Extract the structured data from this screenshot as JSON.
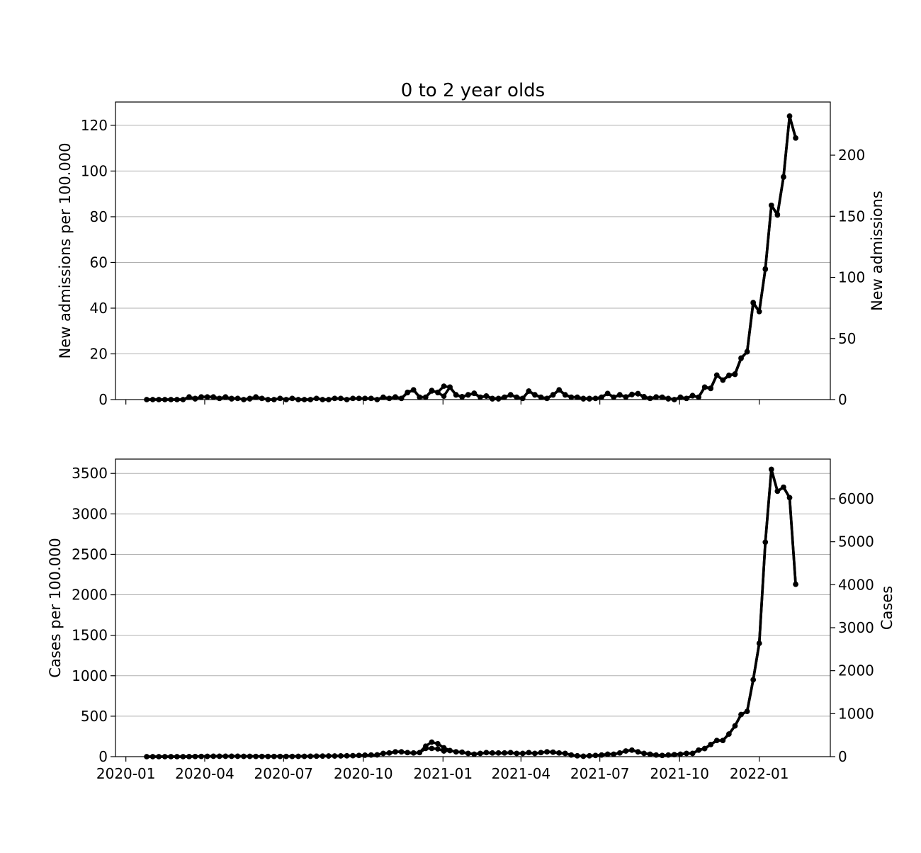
{
  "chart_data": [
    {
      "type": "line",
      "title": "0 to 2 year olds",
      "y_label": "New admissions per 100.000",
      "y2_label": "New admissions",
      "grid": true,
      "x": [
        "2020-01-25",
        "2020-02-01",
        "2020-02-08",
        "2020-02-15",
        "2020-02-22",
        "2020-02-29",
        "2020-03-07",
        "2020-03-14",
        "2020-03-21",
        "2020-03-28",
        "2020-04-04",
        "2020-04-11",
        "2020-04-18",
        "2020-04-25",
        "2020-05-02",
        "2020-05-09",
        "2020-05-16",
        "2020-05-23",
        "2020-05-30",
        "2020-06-06",
        "2020-06-13",
        "2020-06-20",
        "2020-06-27",
        "2020-07-04",
        "2020-07-11",
        "2020-07-18",
        "2020-07-25",
        "2020-08-01",
        "2020-08-08",
        "2020-08-15",
        "2020-08-22",
        "2020-08-29",
        "2020-09-05",
        "2020-09-12",
        "2020-09-19",
        "2020-09-26",
        "2020-10-03",
        "2020-10-10",
        "2020-10-17",
        "2020-10-24",
        "2020-10-31",
        "2020-11-07",
        "2020-11-14",
        "2020-11-21",
        "2020-11-28",
        "2020-12-05",
        "2020-12-12",
        "2020-12-19",
        "2020-12-26",
        "2021-01-02",
        "2021-01-09",
        "2021-01-16",
        "2021-01-23",
        "2021-01-30",
        "2021-02-06",
        "2021-02-13",
        "2021-02-20",
        "2021-02-27",
        "2021-03-06",
        "2021-03-13",
        "2021-03-20",
        "2021-03-27",
        "2021-04-03",
        "2021-04-10",
        "2021-04-17",
        "2021-04-24",
        "2021-05-01",
        "2021-05-08",
        "2021-05-15",
        "2021-05-22",
        "2021-05-29",
        "2021-06-05",
        "2021-06-12",
        "2021-06-19",
        "2021-06-26",
        "2021-07-03",
        "2021-07-10",
        "2021-07-17",
        "2021-07-24",
        "2021-07-31",
        "2021-08-07",
        "2021-08-14",
        "2021-08-21",
        "2021-08-28",
        "2021-09-04",
        "2021-09-11",
        "2021-09-18",
        "2021-09-25",
        "2021-10-02",
        "2021-10-09",
        "2021-10-16",
        "2021-10-23",
        "2021-10-30",
        "2021-11-06",
        "2021-11-13",
        "2021-11-20",
        "2021-11-27",
        "2021-12-04",
        "2021-12-11",
        "2021-12-18",
        "2021-12-25",
        "2022-01-01",
        "2022-01-08",
        "2022-01-15",
        "2022-01-22",
        "2022-01-29",
        "2022-02-05",
        "2022-02-12"
      ],
      "series": [
        {
          "color": "#000000",
          "values": [
            0,
            0,
            0,
            0,
            0,
            0,
            0,
            1.2,
            0.3,
            1.2,
            1.2,
            1.2,
            0.5,
            1.2,
            0.3,
            0.5,
            0,
            0.3,
            1.2,
            0.5,
            0,
            0,
            0.5,
            0,
            0.5,
            0,
            0,
            0,
            0.5,
            0,
            0,
            0.5,
            0.5,
            0,
            0.5,
            0.5,
            0.5,
            0.5,
            0,
            1,
            0.5,
            1.2,
            0.5,
            3,
            4.2,
            1,
            1,
            4,
            3,
            1.5,
            5.5,
            2,
            1.3,
            2,
            2.8,
            1,
            1.5,
            0.3,
            0.3,
            1,
            2,
            1,
            0.5,
            3.7,
            2,
            1,
            0.5,
            2,
            4.2,
            2,
            1,
            1,
            0.3,
            0.3,
            0.5,
            1,
            2.7,
            1,
            2,
            1.2,
            2.3,
            2.5,
            1.3,
            0.5,
            1.2,
            1,
            0.3,
            0,
            1,
            0.5,
            1.8,
            1,
            5.5,
            5,
            10.7,
            8.5,
            10.5,
            11,
            18,
            21,
            42.5,
            38.5,
            57,
            85,
            81,
            97.5,
            124,
            114.5
          ]
        },
        {
          "color": "#000000",
          "axis": "y2",
          "values": [
            0,
            0,
            0,
            0,
            0,
            0,
            0,
            2,
            1,
            2,
            2,
            2,
            1,
            2,
            1,
            1,
            0,
            1,
            2,
            1,
            0,
            0,
            1,
            0,
            1,
            0,
            0,
            0,
            1,
            0,
            0,
            1,
            1,
            0,
            1,
            1,
            1,
            1,
            0,
            2,
            1,
            2,
            1,
            6,
            8,
            2,
            2,
            7,
            6,
            11,
            10,
            4,
            2,
            4,
            5,
            2,
            3,
            1,
            1,
            2,
            4,
            2,
            1,
            7,
            4,
            2,
            1,
            4,
            8,
            4,
            2,
            2,
            1,
            1,
            1,
            2,
            5,
            2,
            4,
            2,
            4,
            5,
            2,
            1,
            2,
            2,
            1,
            0,
            2,
            1,
            3,
            2,
            10,
            9,
            20,
            16,
            20,
            21,
            34,
            39,
            79,
            72,
            107,
            159,
            151,
            182,
            232,
            214
          ]
        }
      ],
      "xlim": [
        "2019-12-20",
        "2022-03-24"
      ],
      "xticks": [
        "2020-01",
        "2020-04",
        "2020-07",
        "2020-10",
        "2021-01",
        "2021-04",
        "2021-07",
        "2021-10",
        "2022-01"
      ],
      "ylim": [
        0,
        130.2
      ],
      "yticks": [
        0,
        20,
        40,
        60,
        80,
        100,
        120
      ],
      "y2lim": [
        0,
        243.5
      ],
      "y2ticks": [
        0,
        50,
        100,
        150,
        200
      ]
    },
    {
      "type": "line",
      "y_label": "Cases per 100.000",
      "y2_label": "Cases",
      "grid": true,
      "x": [
        "2020-01-25",
        "2020-02-01",
        "2020-02-08",
        "2020-02-15",
        "2020-02-22",
        "2020-02-29",
        "2020-03-07",
        "2020-03-14",
        "2020-03-21",
        "2020-03-28",
        "2020-04-04",
        "2020-04-11",
        "2020-04-18",
        "2020-04-25",
        "2020-05-02",
        "2020-05-09",
        "2020-05-16",
        "2020-05-23",
        "2020-05-30",
        "2020-06-06",
        "2020-06-13",
        "2020-06-20",
        "2020-06-27",
        "2020-07-04",
        "2020-07-11",
        "2020-07-18",
        "2020-07-25",
        "2020-08-01",
        "2020-08-08",
        "2020-08-15",
        "2020-08-22",
        "2020-08-29",
        "2020-09-05",
        "2020-09-12",
        "2020-09-19",
        "2020-09-26",
        "2020-10-03",
        "2020-10-10",
        "2020-10-17",
        "2020-10-24",
        "2020-10-31",
        "2020-11-07",
        "2020-11-14",
        "2020-11-21",
        "2020-11-28",
        "2020-12-05",
        "2020-12-12",
        "2020-12-19",
        "2020-12-26",
        "2021-01-02",
        "2021-01-09",
        "2021-01-16",
        "2021-01-23",
        "2021-01-30",
        "2021-02-06",
        "2021-02-13",
        "2021-02-20",
        "2021-02-27",
        "2021-03-06",
        "2021-03-13",
        "2021-03-20",
        "2021-03-27",
        "2021-04-03",
        "2021-04-10",
        "2021-04-17",
        "2021-04-24",
        "2021-05-01",
        "2021-05-08",
        "2021-05-15",
        "2021-05-22",
        "2021-05-29",
        "2021-06-05",
        "2021-06-12",
        "2021-06-19",
        "2021-06-26",
        "2021-07-03",
        "2021-07-10",
        "2021-07-17",
        "2021-07-24",
        "2021-07-31",
        "2021-08-07",
        "2021-08-14",
        "2021-08-21",
        "2021-08-28",
        "2021-09-04",
        "2021-09-11",
        "2021-09-18",
        "2021-09-25",
        "2021-10-02",
        "2021-10-09",
        "2021-10-16",
        "2021-10-23",
        "2021-10-30",
        "2021-11-06",
        "2021-11-13",
        "2021-11-20",
        "2021-11-27",
        "2021-12-04",
        "2021-12-11",
        "2021-12-18",
        "2021-12-25",
        "2022-01-01",
        "2022-01-08",
        "2022-01-15",
        "2022-01-22",
        "2022-01-29",
        "2022-02-05",
        "2022-02-12"
      ],
      "series": [
        {
          "color": "#000000",
          "values": [
            0,
            0,
            0,
            0,
            0,
            0,
            0,
            1,
            2,
            3,
            4,
            5,
            5,
            5,
            5,
            5,
            4,
            4,
            3,
            3,
            3,
            3,
            3,
            3,
            3,
            4,
            4,
            5,
            6,
            7,
            8,
            8,
            9,
            10,
            12,
            15,
            18,
            20,
            22,
            40,
            45,
            60,
            60,
            50,
            45,
            50,
            130,
            180,
            160,
            110,
            75,
            60,
            55,
            40,
            30,
            40,
            50,
            45,
            45,
            45,
            50,
            40,
            40,
            50,
            40,
            50,
            60,
            55,
            45,
            40,
            20,
            10,
            5,
            10,
            15,
            20,
            30,
            30,
            45,
            70,
            80,
            60,
            40,
            30,
            20,
            15,
            20,
            25,
            30,
            40,
            40,
            80,
            100,
            150,
            200,
            200,
            280,
            380,
            520,
            560,
            950,
            1400,
            2650,
            3550,
            3280,
            3330,
            3200,
            2130
          ]
        },
        {
          "color": "#000000",
          "axis": "y2",
          "values": [
            0,
            0,
            0,
            0,
            0,
            0,
            0,
            2,
            4,
            6,
            8,
            9,
            9,
            9,
            9,
            9,
            8,
            8,
            6,
            6,
            6,
            6,
            6,
            6,
            6,
            8,
            8,
            9,
            11,
            13,
            15,
            15,
            17,
            19,
            23,
            28,
            34,
            38,
            41,
            75,
            85,
            113,
            113,
            94,
            85,
            94,
            190,
            190,
            180,
            130,
            141,
            113,
            104,
            75,
            56,
            75,
            94,
            85,
            85,
            85,
            94,
            75,
            75,
            94,
            75,
            94,
            113,
            104,
            85,
            75,
            38,
            19,
            9,
            19,
            28,
            38,
            56,
            56,
            85,
            132,
            151,
            113,
            75,
            56,
            38,
            28,
            38,
            47,
            56,
            75,
            75,
            151,
            188,
            282,
            377,
            377,
            527,
            716,
            979,
            1054,
            1789,
            2636,
            4990,
            6685,
            6176,
            6270,
            6026,
            4011
          ]
        }
      ],
      "xlim": [
        "2019-12-20",
        "2022-03-24"
      ],
      "xticks": [
        "2020-01",
        "2020-04",
        "2020-07",
        "2020-10",
        "2021-01",
        "2021-04",
        "2021-07",
        "2021-10",
        "2022-01"
      ],
      "ylim": [
        0,
        3677
      ],
      "yticks": [
        0,
        500,
        1000,
        1500,
        2000,
        2500,
        3000,
        3500
      ],
      "y2lim": [
        0,
        6923
      ],
      "y2ticks": [
        0,
        1000,
        2000,
        3000,
        4000,
        5000,
        6000
      ]
    }
  ]
}
